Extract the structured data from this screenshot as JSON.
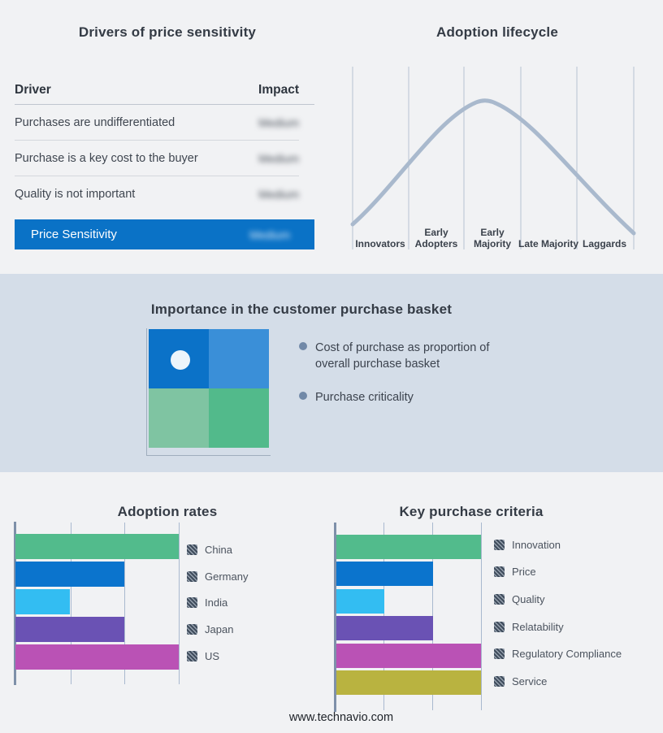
{
  "basket_panel": {
    "title": "Importance in the customer purchase basket",
    "bullets": [
      "Cost of purchase as proportion of overall purchase basket",
      "Purchase criticality"
    ],
    "quadrant_colors": [
      "#0b72c8",
      "#3a8fd8",
      "#7fc4a2",
      "#52ba8b"
    ],
    "marker_color": "#edf5fb",
    "bullet_color": "#7189a8"
  },
  "footer": {
    "website": "www.technavio.com"
  },
  "colors": {
    "highlight_blue": "#0a72c6",
    "curve": "#a9b9cd",
    "gridline": "#a9b9cf",
    "band_background": "#d4dde8",
    "page_background": "#f1f2f4"
  },
  "chart_data": [
    {
      "id": "drivers-of-price-sensitivity",
      "type": "table",
      "title": "Drivers of price sensitivity",
      "columns": [
        "Driver",
        "Impact"
      ],
      "rows": [
        [
          "Purchases are undifferentiated",
          "Medium"
        ],
        [
          "Purchase is a key cost to the buyer",
          "Medium"
        ],
        [
          "Quality is not important",
          "Medium"
        ],
        [
          "Price Sensitivity",
          "Medium"
        ]
      ],
      "notes": "Impact values are shown blurred; last row highlighted in blue"
    },
    {
      "id": "adoption-lifecycle",
      "type": "line",
      "title": "Adoption lifecycle",
      "categories": [
        "Innovators",
        "Early Adopters",
        "Early Majority",
        "Late Majority",
        "Laggards"
      ],
      "curve": "bell",
      "peak_between": [
        "Early Majority"
      ],
      "y_normalized_at_stage_boundaries": [
        0.0,
        0.55,
        0.95,
        0.78,
        0.4,
        0.0
      ],
      "grid": "vertical stage separators only",
      "legend_position": "none"
    },
    {
      "id": "adoption-rates",
      "type": "bar",
      "title": "Adoption rates",
      "orientation": "horizontal",
      "categories": [
        "China",
        "Germany",
        "India",
        "Japan",
        "US"
      ],
      "values": [
        3,
        2,
        1,
        2,
        3
      ],
      "xlim": [
        0,
        3
      ],
      "grid": true,
      "legend_position": "right",
      "colors": [
        "#52bb8c",
        "#0b74cd",
        "#33bdf2",
        "#6a52b4",
        "#ba52b5"
      ]
    },
    {
      "id": "key-purchase-criteria",
      "type": "bar",
      "title": "Key purchase criteria",
      "orientation": "horizontal",
      "categories": [
        "Innovation",
        "Price",
        "Quality",
        "Relatability",
        "Regulatory Compliance",
        "Service"
      ],
      "values": [
        3,
        2,
        1,
        2,
        3,
        3
      ],
      "xlim": [
        0,
        3
      ],
      "grid": true,
      "legend_position": "right",
      "colors": [
        "#52bb8c",
        "#0b74cd",
        "#33bdf2",
        "#6a52b4",
        "#ba52b5",
        "#b9b340"
      ]
    }
  ]
}
